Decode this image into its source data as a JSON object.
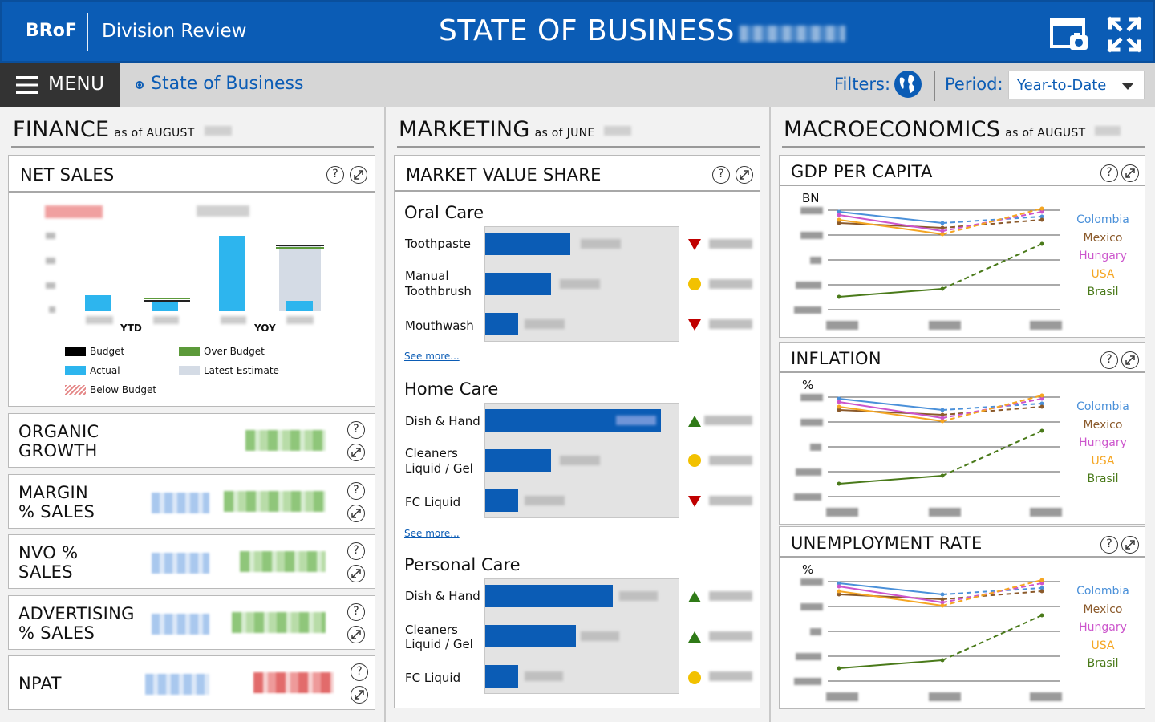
{
  "header": {
    "brand": "BRoF",
    "division": "Division Review",
    "title": "STATE OF BUSINESS"
  },
  "subbar": {
    "menu_label": "MENU",
    "breadcrumb": "State of Business",
    "filters_label": "Filters:",
    "period_label": "Period:",
    "period_value": "Year-to-Date"
  },
  "finance": {
    "title": "FINANCE",
    "as_of": "as of AUGUST",
    "net_sales": {
      "title": "NET SALES",
      "ytd_label": "YTD",
      "yoy_label": "YOY",
      "legend": [
        {
          "label": "Budget",
          "color": "#000000"
        },
        {
          "label": "Over Budget",
          "color": "#5c9a3a"
        },
        {
          "label": "Actual",
          "color": "#2db5ee"
        },
        {
          "label": "Latest Estimate",
          "color": "#d4dbe5"
        },
        {
          "label": "Below Budget",
          "color": "#e58a8a"
        }
      ]
    },
    "metrics": [
      {
        "title_1": "ORGANIC",
        "title_2": "GROWTH"
      },
      {
        "title_1": "MARGIN",
        "title_2": "% SALES"
      },
      {
        "title_1": "NVO %",
        "title_2": "SALES"
      },
      {
        "title_1": "ADVERTISING",
        "title_2": "% SALES"
      },
      {
        "title_1": "NPAT",
        "title_2": ""
      }
    ]
  },
  "marketing": {
    "title": "MARKETING",
    "as_of": "as of JUNE",
    "card_title": "MARKET VALUE SHARE",
    "see_more": "See more...",
    "categories": [
      {
        "name": "Oral Care",
        "rows": [
          {
            "label_1": "Toothpaste",
            "label_2": "",
            "share": 0.44,
            "trend": "down"
          },
          {
            "label_1": "Manual",
            "label_2": "Toothbrush",
            "share": 0.34,
            "trend": "flat"
          },
          {
            "label_1": "Mouthwash",
            "label_2": "",
            "share": 0.17,
            "trend": "down"
          }
        ]
      },
      {
        "name": "Home Care",
        "rows": [
          {
            "label_1": "Dish & Hand",
            "label_2": "",
            "share": 0.91,
            "trend": "up"
          },
          {
            "label_1": "Cleaners",
            "label_2": "Liquid / Gel",
            "share": 0.34,
            "trend": "flat"
          },
          {
            "label_1": "FC Liquid",
            "label_2": "",
            "share": 0.17,
            "trend": "down"
          }
        ]
      },
      {
        "name": "Personal Care",
        "rows": [
          {
            "label_1": "Dish & Hand",
            "label_2": "",
            "share": 0.66,
            "trend": "up"
          },
          {
            "label_1": "Cleaners",
            "label_2": "Liquid / Gel",
            "share": 0.47,
            "trend": "up"
          },
          {
            "label_1": "FC Liquid",
            "label_2": "",
            "share": 0.17,
            "trend": "flat"
          }
        ]
      }
    ]
  },
  "macro": {
    "title": "MACROECONOMICS",
    "as_of": "as of AUGUST",
    "cards": [
      {
        "title": "GDP PER CAPITA",
        "unit": "BN"
      },
      {
        "title": "INFLATION",
        "unit": "%"
      },
      {
        "title": "UNEMPLOYMENT RATE",
        "unit": "%"
      }
    ],
    "countries": [
      {
        "name": "Colombia",
        "color": "#4a90d9"
      },
      {
        "name": "Mexico",
        "color": "#8b5a2b"
      },
      {
        "name": "Hungary",
        "color": "#cc55cc"
      },
      {
        "name": "USA",
        "color": "#f5a623"
      },
      {
        "name": "Brasil",
        "color": "#4a7a1a"
      }
    ]
  },
  "icons": {
    "help": "help-icon",
    "expand": "expand-icon",
    "help_glyph": "?"
  }
}
